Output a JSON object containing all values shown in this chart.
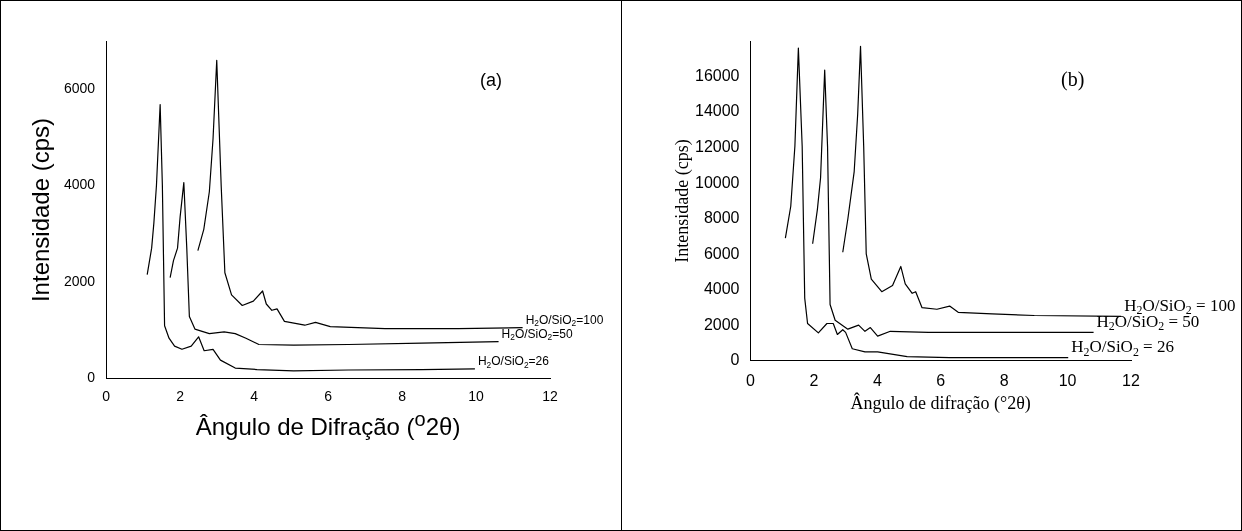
{
  "chart_data": [
    {
      "type": "line",
      "xlabel": "Ângulo de Difração ($^{o}$2θ)",
      "ylabel": "Intensidade (cps)",
      "annotations": [
        "(a)"
      ],
      "xlim": [
        0,
        12
      ],
      "xticks": [
        0,
        2,
        4,
        6,
        8,
        10,
        12
      ],
      "ylim": [
        0,
        7000
      ],
      "yticks": [
        0,
        2000,
        4000,
        6000
      ],
      "grid": false,
      "legend": false,
      "marker": "none",
      "line_style": "solid",
      "series": [
        {
          "name": "H$_{2}$O/SiO$_{2}$=26",
          "color": "#000000",
          "x": [
            1.11,
            1.23,
            1.29,
            1.36,
            1.46,
            1.52,
            1.58,
            1.7,
            1.85,
            2.05,
            2.3,
            2.5,
            2.65,
            2.89,
            3.09,
            3.49,
            4.08,
            5.07,
            6.55,
            8.53,
            9.97
          ],
          "values": [
            2150,
            2700,
            3220,
            4000,
            5680,
            4000,
            1090,
            830,
            665,
            600,
            665,
            860,
            570,
            600,
            375,
            210,
            180,
            150,
            170,
            180,
            195
          ]
        },
        {
          "name": "H$_{2}$O/SiO$_{2}$=50",
          "color": "#000000",
          "x": [
            1.73,
            1.82,
            1.93,
            2.0,
            2.1,
            2.18,
            2.25,
            2.4,
            2.79,
            3.19,
            3.49,
            3.78,
            4.13,
            5.07,
            6.55,
            8.53,
            10.61
          ],
          "values": [
            2090,
            2440,
            2700,
            3350,
            4060,
            2700,
            1280,
            1020,
            925,
            960,
            925,
            830,
            700,
            685,
            700,
            730,
            760
          ]
        },
        {
          "name": "H$_{2}$O/SiO$_{2}$=100",
          "color": "#000000",
          "x": [
            2.48,
            2.64,
            2.79,
            2.89,
            2.99,
            3.11,
            3.21,
            3.39,
            3.68,
            3.98,
            4.23,
            4.33,
            4.48,
            4.62,
            4.82,
            5.37,
            5.66,
            6.06,
            7.54,
            9.52,
            11.26
          ],
          "values": [
            2650,
            3090,
            3870,
            4970,
            6600,
            4000,
            2190,
            1730,
            1510,
            1600,
            1810,
            1540,
            1410,
            1440,
            1180,
            1100,
            1160,
            1070,
            1030,
            1030,
            1050
          ]
        }
      ]
    },
    {
      "type": "line",
      "xlabel": "Ângulo de difração (°2θ)",
      "ylabel": "Intensidade (cps)",
      "annotations": [
        "(b)"
      ],
      "xlim": [
        0,
        12
      ],
      "xticks": [
        0,
        2,
        4,
        6,
        8,
        10,
        12
      ],
      "ylim": [
        0,
        18000
      ],
      "yticks": [
        0,
        2000,
        4000,
        6000,
        8000,
        10000,
        12000,
        14000,
        16000
      ],
      "grid": false,
      "legend": false,
      "marker": "none",
      "line_style": "solid",
      "series": [
        {
          "name": "H$_{2}$O/SiO$_{2}$ = 26",
          "color": "#000000",
          "x": [
            1.1,
            1.27,
            1.4,
            1.51,
            1.63,
            1.71,
            1.8,
            2.14,
            2.41,
            2.61,
            2.74,
            2.91,
            3.0,
            3.21,
            3.61,
            4.01,
            4.94,
            6.28,
            8.95,
            10.02
          ],
          "values": [
            6900,
            8700,
            12080,
            17600,
            12080,
            3530,
            2100,
            1570,
            2100,
            2100,
            1480,
            1750,
            1600,
            680,
            500,
            500,
            230,
            180,
            180,
            180
          ]
        },
        {
          "name": "H$_{2}$O/SiO$_{2}$ = 50",
          "color": "#000000",
          "x": [
            1.96,
            2.11,
            2.21,
            2.34,
            2.43,
            2.51,
            2.67,
            3.07,
            3.41,
            3.61,
            3.78,
            4.01,
            4.41,
            5.61,
            7.62,
            10.82
          ],
          "values": [
            6590,
            8520,
            10300,
            16360,
            12080,
            3170,
            2280,
            1780,
            2010,
            1660,
            1870,
            1390,
            1660,
            1600,
            1600,
            1600
          ]
        },
        {
          "name": "H$_{2}$O/SiO$_{2}$ = 100",
          "color": "#000000",
          "x": [
            2.91,
            3.07,
            3.27,
            3.38,
            3.47,
            3.57,
            3.65,
            3.81,
            4.14,
            4.48,
            4.74,
            4.88,
            5.1,
            5.21,
            5.41,
            5.88,
            6.28,
            6.55,
            7.62,
            8.95,
            11.69
          ],
          "values": [
            6110,
            7980,
            10650,
            13860,
            17700,
            12080,
            6020,
            4600,
            3890,
            4240,
            5310,
            4330,
            3800,
            3890,
            2990,
            2900,
            3080,
            2730,
            2640,
            2550,
            2500
          ]
        }
      ]
    }
  ]
}
